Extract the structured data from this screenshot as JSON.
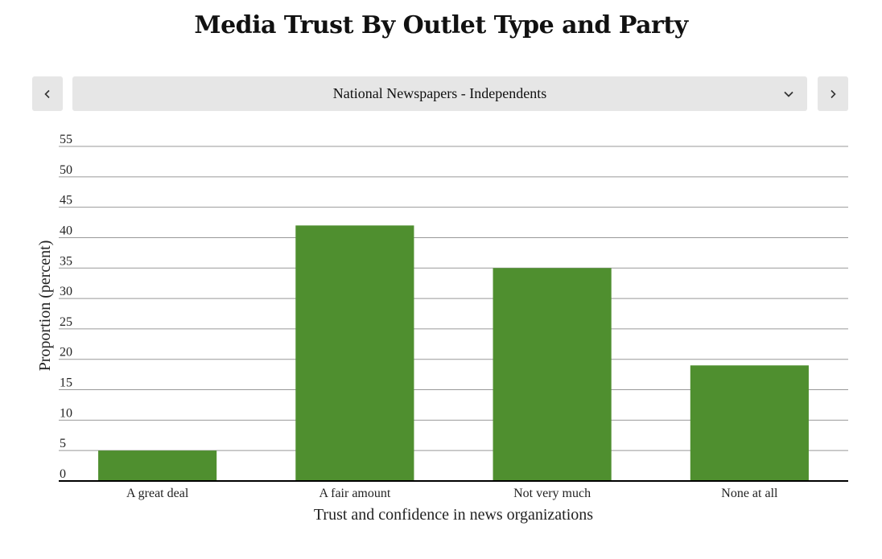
{
  "header": {
    "title": "Media Trust By Outlet Type and Party"
  },
  "selector": {
    "selected": "National Newspapers - Independents"
  },
  "colors": {
    "bar": "#4f8f2f",
    "gridline": "#999999",
    "baseline": "#000000",
    "button_bg": "#e6e6e6"
  },
  "icons": {
    "prev": "chevron-left-icon",
    "next": "chevron-right-icon",
    "dropdown": "chevron-down-icon"
  },
  "chart_data": {
    "type": "bar",
    "title": "",
    "xlabel": "Trust and confidence in news organizations",
    "ylabel": "Proportion (percent)",
    "categories": [
      "A great deal",
      "A fair amount",
      "Not very much",
      "None at all"
    ],
    "values": [
      5,
      42,
      35,
      19
    ],
    "ylim": [
      0,
      55
    ],
    "yticks": [
      0,
      5,
      10,
      15,
      20,
      25,
      30,
      35,
      40,
      45,
      50,
      55
    ],
    "grid": true,
    "legend": "none"
  }
}
